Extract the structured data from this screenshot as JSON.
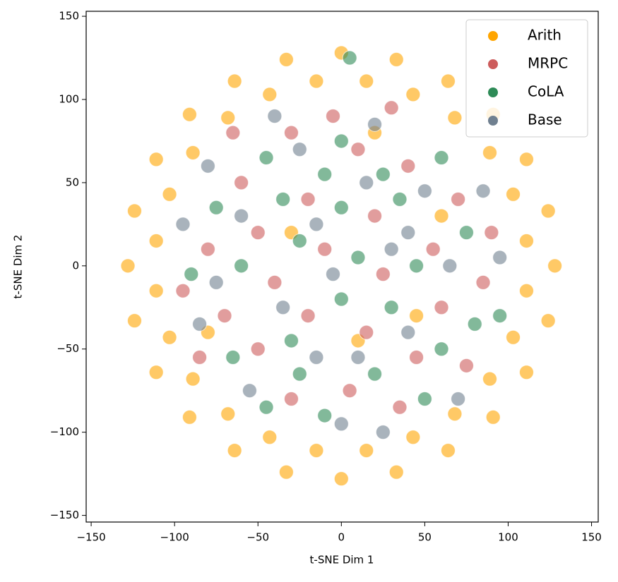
{
  "chart_data": {
    "type": "scatter",
    "x_label": "t-SNE Dim 1",
    "y_label": "t-SNE Dim 2",
    "xlim": [
      -153,
      154
    ],
    "ylim": [
      -154,
      153
    ],
    "xticks": [
      {
        "value": -150,
        "label": "−150"
      },
      {
        "value": -100,
        "label": "−100"
      },
      {
        "value": -50,
        "label": "−50"
      },
      0,
      50,
      100,
      150
    ],
    "yticks": [
      {
        "value": -150,
        "label": "−150"
      },
      {
        "value": -100,
        "label": "−100"
      },
      {
        "value": -50,
        "label": "−50"
      },
      0,
      50,
      100,
      150
    ],
    "grid": false,
    "legend": "upper right",
    "series": [
      {
        "name": "Arith",
        "color": "#FFA500",
        "x": [
          128,
          124,
          111,
          91,
          64,
          33,
          0,
          -33,
          -64,
          -91,
          -111,
          -124,
          -128,
          -124,
          -111,
          -91,
          -64,
          -33,
          0,
          33,
          64,
          91,
          111,
          124,
          111,
          103,
          89,
          68,
          43,
          15,
          -15,
          -43,
          -68,
          -89,
          -103,
          -111,
          -111,
          -103,
          -89,
          -68,
          -43,
          -15,
          15,
          43,
          68,
          89,
          103,
          111,
          10,
          -30,
          45,
          60,
          -80,
          20
        ],
        "y": [
          0,
          33,
          64,
          91,
          111,
          124,
          128,
          124,
          111,
          91,
          64,
          33,
          0,
          -33,
          -64,
          -91,
          -111,
          -124,
          -128,
          -124,
          -111,
          -91,
          -64,
          -33,
          15,
          43,
          68,
          89,
          103,
          111,
          111,
          103,
          89,
          68,
          43,
          15,
          -15,
          -43,
          -68,
          -89,
          -103,
          -111,
          -111,
          -103,
          -89,
          -68,
          -43,
          -15,
          -45,
          20,
          -30,
          30,
          -40,
          80
        ]
      },
      {
        "name": "MRPC",
        "color": "#CD5C5C",
        "x": [
          -60,
          -30,
          10,
          40,
          70,
          -80,
          -50,
          -20,
          20,
          55,
          85,
          -70,
          -40,
          -10,
          25,
          60,
          -85,
          -50,
          -20,
          15,
          45,
          75,
          -30,
          5,
          35,
          -5,
          -65,
          30,
          90,
          -95
        ],
        "y": [
          50,
          80,
          70,
          60,
          40,
          10,
          20,
          40,
          30,
          10,
          -10,
          -30,
          -10,
          10,
          -5,
          -25,
          -55,
          -50,
          -30,
          -40,
          -55,
          -60,
          -80,
          -75,
          -85,
          90,
          80,
          95,
          20,
          -15
        ]
      },
      {
        "name": "CoLA",
        "color": "#2E8B57",
        "x": [
          -45,
          -10,
          25,
          60,
          -75,
          -35,
          0,
          35,
          75,
          -90,
          -60,
          -25,
          10,
          45,
          80,
          -65,
          -30,
          0,
          30,
          60,
          -45,
          -10,
          20,
          50,
          0,
          -25,
          95,
          5
        ],
        "y": [
          65,
          55,
          55,
          65,
          35,
          40,
          35,
          40,
          20,
          -5,
          0,
          15,
          5,
          0,
          -35,
          -55,
          -45,
          -20,
          -25,
          -50,
          -85,
          -90,
          -65,
          -80,
          75,
          -65,
          -30,
          125
        ]
      },
      {
        "name": "Base",
        "color": "#708090",
        "x": [
          -25,
          20,
          50,
          -60,
          -15,
          15,
          40,
          -95,
          -75,
          -35,
          -5,
          30,
          65,
          -55,
          -15,
          10,
          40,
          70,
          -80,
          85,
          -40,
          0,
          -85,
          95,
          25
        ],
        "y": [
          70,
          85,
          45,
          30,
          25,
          50,
          20,
          25,
          -10,
          -25,
          -5,
          10,
          0,
          -75,
          -55,
          -55,
          -40,
          -80,
          60,
          45,
          90,
          -95,
          -35,
          5,
          -100
        ]
      }
    ]
  }
}
